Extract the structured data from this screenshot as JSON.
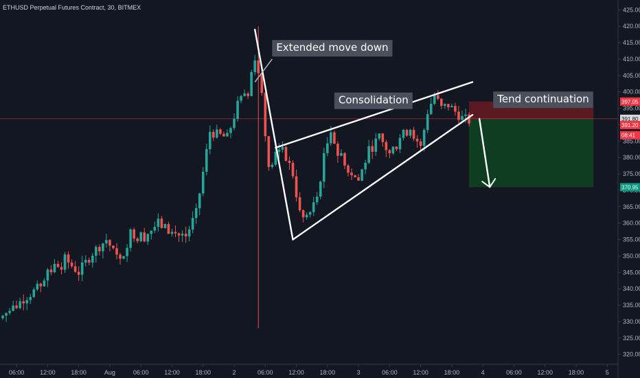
{
  "chart_data": {
    "type": "candlestick",
    "title": "ETHUSD Perpetual Futures Contract, 30, BITMEX",
    "ylim": [
      317,
      428
    ],
    "y_ticks": [
      320,
      325,
      330,
      335,
      340,
      345,
      350,
      355,
      360,
      365,
      370,
      375,
      380,
      385,
      390,
      395,
      400,
      405,
      410,
      415,
      420,
      425
    ],
    "y_tick_labels": [
      "320.00",
      "325.00",
      "330.00",
      "335.00",
      "340.00",
      "345.00",
      "350.00",
      "355.00",
      "360.00",
      "365.00",
      "370.00",
      "375.00",
      "380.00",
      "385.00",
      "390.00",
      "395.00",
      "400.00",
      "405.00",
      "410.00",
      "415.00",
      "420.00",
      "425.00"
    ],
    "x_range_bars": [
      0,
      167
    ],
    "x_ticks": [
      {
        "bar": 4,
        "label": "06:00"
      },
      {
        "bar": 13,
        "label": "12:00"
      },
      {
        "bar": 22,
        "label": "18:00"
      },
      {
        "bar": 31,
        "label": "Aug"
      },
      {
        "bar": 40,
        "label": "06:00"
      },
      {
        "bar": 49,
        "label": "12:00"
      },
      {
        "bar": 58,
        "label": "18:00"
      },
      {
        "bar": 67,
        "label": "2"
      },
      {
        "bar": 76,
        "label": "06:00"
      },
      {
        "bar": 85,
        "label": "12:00"
      },
      {
        "bar": 94,
        "label": "18:00"
      },
      {
        "bar": 103,
        "label": "3"
      },
      {
        "bar": 112,
        "label": "06:00"
      },
      {
        "bar": 121,
        "label": "12:00"
      },
      {
        "bar": 130,
        "label": "18:00"
      },
      {
        "bar": 139,
        "label": "4"
      },
      {
        "bar": 148,
        "label": "06:00"
      },
      {
        "bar": 157,
        "label": "12:00"
      },
      {
        "bar": 166,
        "label": "18:00"
      },
      {
        "bar": 175,
        "label": "5"
      }
    ],
    "current_price": 391.8,
    "price_badges": [
      {
        "price": 397.05,
        "label": "397.05",
        "color": "#f23645"
      },
      {
        "price": 391.8,
        "label": "391.80",
        "color": "#d9d9d9",
        "text_color": "#131722"
      },
      {
        "price": 389.9,
        "label": "391.20",
        "color": "#f23645"
      },
      {
        "price": 386.8,
        "label": "08:41",
        "color": "#f23645"
      },
      {
        "price": 370.95,
        "label": "370.95",
        "color": "#089981"
      }
    ],
    "candle_path": [
      [
        0,
        331
      ],
      [
        6,
        337
      ],
      [
        10,
        340
      ],
      [
        14,
        346
      ],
      [
        18,
        349
      ],
      [
        22,
        345
      ],
      [
        26,
        351
      ],
      [
        30,
        355
      ],
      [
        34,
        348
      ],
      [
        37,
        357
      ],
      [
        41,
        356
      ],
      [
        45,
        360
      ],
      [
        49,
        357
      ],
      [
        53,
        356
      ],
      [
        56,
        363
      ],
      [
        60,
        388
      ],
      [
        62,
        387
      ],
      [
        65,
        386
      ],
      [
        68,
        396
      ],
      [
        71,
        401
      ],
      [
        73,
        411
      ],
      [
        75,
        400
      ],
      [
        77,
        376
      ],
      [
        79,
        381
      ],
      [
        81,
        383
      ],
      [
        84,
        375
      ],
      [
        86,
        363
      ],
      [
        88,
        360
      ],
      [
        91,
        368
      ],
      [
        93,
        380
      ],
      [
        95,
        389
      ],
      [
        97,
        381
      ],
      [
        100,
        376
      ],
      [
        103,
        373
      ],
      [
        106,
        382
      ],
      [
        109,
        386
      ],
      [
        112,
        381
      ],
      [
        115,
        386
      ],
      [
        118,
        389
      ],
      [
        121,
        383
      ],
      [
        123,
        394
      ],
      [
        125,
        399
      ],
      [
        127,
        395
      ],
      [
        129,
        396
      ],
      [
        131,
        394
      ],
      [
        133,
        392
      ],
      [
        135,
        391.2
      ]
    ],
    "spike": {
      "bar": 74,
      "high": 420,
      "low": 328
    },
    "colors": {
      "up": "#26a69a",
      "down": "#ef5350"
    },
    "trendlines": [
      {
        "from": [
          73,
          419
        ],
        "to": [
          84,
          355
        ]
      },
      {
        "from": [
          79,
          383
        ],
        "to": [
          136,
          403
        ]
      },
      {
        "from": [
          84,
          355
        ],
        "to": [
          136,
          393
        ]
      },
      {
        "from": [
          138,
          391.8
        ],
        "to": [
          141,
          371
        ]
      }
    ],
    "callout": {
      "from": [
        73,
        403
      ],
      "to": [
        78,
        410
      ]
    },
    "zones": {
      "stop": {
        "x0": 135,
        "x1": 171,
        "y_top": 397.05,
        "y_bottom": 391.8,
        "color": "#5b1a22"
      },
      "target": {
        "x0": 135,
        "x1": 171,
        "y_top": 391.8,
        "y_bottom": 370.95,
        "color": "#0f3d22"
      }
    },
    "annotations": [
      {
        "text": "Extended move down",
        "bar": 78,
        "price": 413.5
      },
      {
        "text": "Consolidation",
        "bar": 96,
        "price": 397.5
      },
      {
        "text": "Tend continuation",
        "bar": 142,
        "price": 397.8
      }
    ]
  }
}
